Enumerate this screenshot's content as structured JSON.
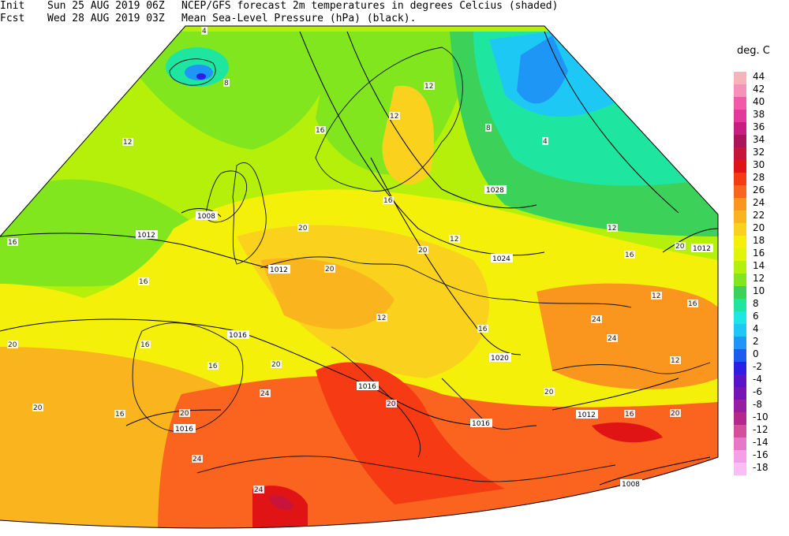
{
  "header": {
    "init_label": "Init",
    "init_date": "Sun 25 AUG 2019 06Z",
    "fcst_label": "Fcst",
    "fcst_date": "Wed 28 AUG 2019 03Z",
    "line1_desc": "NCEP/GFS forecast 2m temperatures in degrees Celcius (shaded)",
    "line2_desc": "Mean Sea-Level Pressure (hPa) (black)."
  },
  "legend": {
    "title": "deg. C",
    "items": [
      {
        "value": "44",
        "color": "#f6b3b9"
      },
      {
        "value": "42",
        "color": "#f592b9"
      },
      {
        "value": "40",
        "color": "#f05aa6"
      },
      {
        "value": "38",
        "color": "#e13a9a"
      },
      {
        "value": "36",
        "color": "#c81e82"
      },
      {
        "value": "34",
        "color": "#a9145a"
      },
      {
        "value": "32",
        "color": "#c8143c"
      },
      {
        "value": "30",
        "color": "#e01414"
      },
      {
        "value": "28",
        "color": "#f53a14"
      },
      {
        "value": "26",
        "color": "#fa641e"
      },
      {
        "value": "24",
        "color": "#fa961e"
      },
      {
        "value": "22",
        "color": "#fab41e"
      },
      {
        "value": "20",
        "color": "#fad21e"
      },
      {
        "value": "18",
        "color": "#f5f00a"
      },
      {
        "value": "16",
        "color": "#e1f50a"
      },
      {
        "value": "14",
        "color": "#b4f00a"
      },
      {
        "value": "12",
        "color": "#82e61e"
      },
      {
        "value": "10",
        "color": "#3cd25a"
      },
      {
        "value": "8",
        "color": "#1ee6a0"
      },
      {
        "value": "6",
        "color": "#1ee6e6"
      },
      {
        "value": "4",
        "color": "#1ec8f5"
      },
      {
        "value": "2",
        "color": "#1e96f5"
      },
      {
        "value": "0",
        "color": "#1e5af0"
      },
      {
        "value": "-2",
        "color": "#2d1ee6"
      },
      {
        "value": "-4",
        "color": "#5a14c8"
      },
      {
        "value": "-6",
        "color": "#7814b4"
      },
      {
        "value": "-8",
        "color": "#961ea0"
      },
      {
        "value": "-10",
        "color": "#b4288c"
      },
      {
        "value": "-12",
        "color": "#d2509b"
      },
      {
        "value": "-14",
        "color": "#e678c8"
      },
      {
        "value": "-16",
        "color": "#f5a0e6"
      },
      {
        "value": "-18",
        "color": "#fabef5"
      }
    ]
  },
  "isobar_labels": [
    "1028",
    "1024",
    "1020",
    "1016",
    "1016",
    "1016",
    "1016",
    "1012",
    "1012",
    "1012",
    "1012",
    "1008",
    "1008"
  ],
  "temp_labels": [
    "4",
    "8",
    "4",
    "8",
    "12",
    "12",
    "12",
    "12",
    "16",
    "16",
    "16",
    "16",
    "16",
    "16",
    "16",
    "16",
    "20",
    "20",
    "20",
    "20",
    "20",
    "20",
    "20",
    "24",
    "24",
    "24",
    "24",
    "24",
    "20",
    "20",
    "20",
    "12",
    "12",
    "12",
    "12",
    "16",
    "16",
    "16",
    "20"
  ]
}
